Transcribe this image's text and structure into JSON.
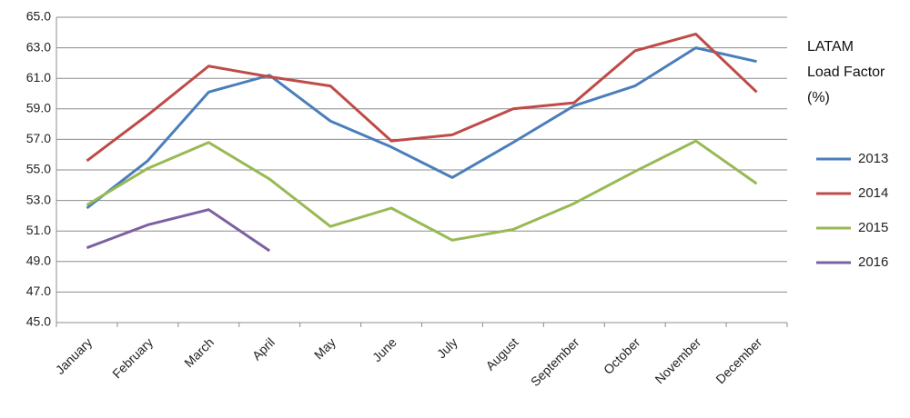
{
  "chart_data": {
    "type": "line",
    "title": "LATAM Load Factor (%)",
    "categories": [
      "January",
      "February",
      "March",
      "April",
      "May",
      "June",
      "July",
      "August",
      "September",
      "October",
      "November",
      "December"
    ],
    "series": [
      {
        "name": "2013",
        "color": "#4a7ebb",
        "values": [
          52.5,
          55.6,
          60.1,
          61.2,
          58.2,
          56.5,
          54.5,
          56.8,
          59.2,
          60.5,
          63.0,
          62.1
        ]
      },
      {
        "name": "2014",
        "color": "#be4b48",
        "values": [
          55.6,
          58.6,
          61.8,
          61.1,
          60.5,
          56.9,
          57.3,
          59.0,
          59.4,
          62.8,
          63.9,
          60.1
        ]
      },
      {
        "name": "2015",
        "color": "#98b954",
        "values": [
          52.7,
          55.1,
          56.8,
          54.4,
          51.3,
          52.5,
          50.4,
          51.1,
          52.8,
          54.9,
          56.9,
          54.1
        ]
      },
      {
        "name": "2016",
        "color": "#7d60a0",
        "values": [
          49.9,
          51.4,
          52.4,
          49.7,
          null,
          null,
          null,
          null,
          null,
          null,
          null,
          null
        ]
      }
    ],
    "ylim": [
      45,
      65
    ],
    "yticks": [
      {
        "value": 45,
        "label": "45.0"
      },
      {
        "value": 47,
        "label": "47.0"
      },
      {
        "value": 49,
        "label": "49.0"
      },
      {
        "value": 51,
        "label": "51.0"
      },
      {
        "value": 53,
        "label": "53.0"
      },
      {
        "value": 55,
        "label": "55.0"
      },
      {
        "value": 57,
        "label": "57.0"
      },
      {
        "value": 59,
        "label": "59.0"
      },
      {
        "value": 61,
        "label": "61.0"
      },
      {
        "value": 63,
        "label": "63.0"
      },
      {
        "value": 65,
        "label": "65.0"
      }
    ],
    "grid": true,
    "legend": "right"
  }
}
